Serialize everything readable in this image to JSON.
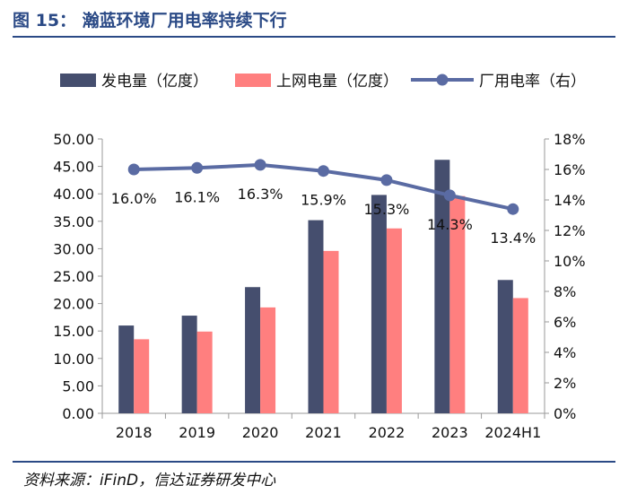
{
  "header": {
    "title": "图 15：  瀚蓝环境厂用电率持续下行"
  },
  "footer": {
    "source": "资料来源：iFinD，信达证券研发中心"
  },
  "colors": {
    "accent": "#2b4a86",
    "bar1": "#454e6e",
    "bar2": "#ff7f7f",
    "line": "#5a6ba3"
  },
  "chart_data": {
    "type": "bar",
    "categories": [
      "2018",
      "2019",
      "2020",
      "2021",
      "2022",
      "2023",
      "2024H1"
    ],
    "series": [
      {
        "name": "发电量（亿度）",
        "type": "bar",
        "axis": "left",
        "values": [
          16.0,
          17.8,
          23.0,
          35.2,
          39.8,
          46.2,
          24.3
        ]
      },
      {
        "name": "上网电量（亿度）",
        "type": "bar",
        "axis": "left",
        "values": [
          13.5,
          14.9,
          19.3,
          29.6,
          33.7,
          39.6,
          21.0
        ]
      },
      {
        "name": "厂用电率（右）",
        "type": "line",
        "axis": "right",
        "values": [
          16.0,
          16.1,
          16.3,
          15.9,
          15.3,
          14.3,
          13.4
        ],
        "labels": [
          "16.0%",
          "16.1%",
          "16.3%",
          "15.9%",
          "15.3%",
          "14.3%",
          "13.4%"
        ]
      }
    ],
    "y_left": {
      "min": 0,
      "max": 50,
      "step": 5,
      "ticks": [
        "0.00",
        "5.00",
        "10.00",
        "15.00",
        "20.00",
        "25.00",
        "30.00",
        "35.00",
        "40.00",
        "45.00",
        "50.00"
      ]
    },
    "y_right": {
      "min": 0,
      "max": 18,
      "step": 2,
      "ticks": [
        "0%",
        "2%",
        "4%",
        "6%",
        "8%",
        "10%",
        "12%",
        "14%",
        "16%",
        "18%"
      ]
    },
    "legend": [
      "发电量（亿度）",
      "上网电量（亿度）",
      "厂用电率（右）"
    ],
    "grid": false
  }
}
